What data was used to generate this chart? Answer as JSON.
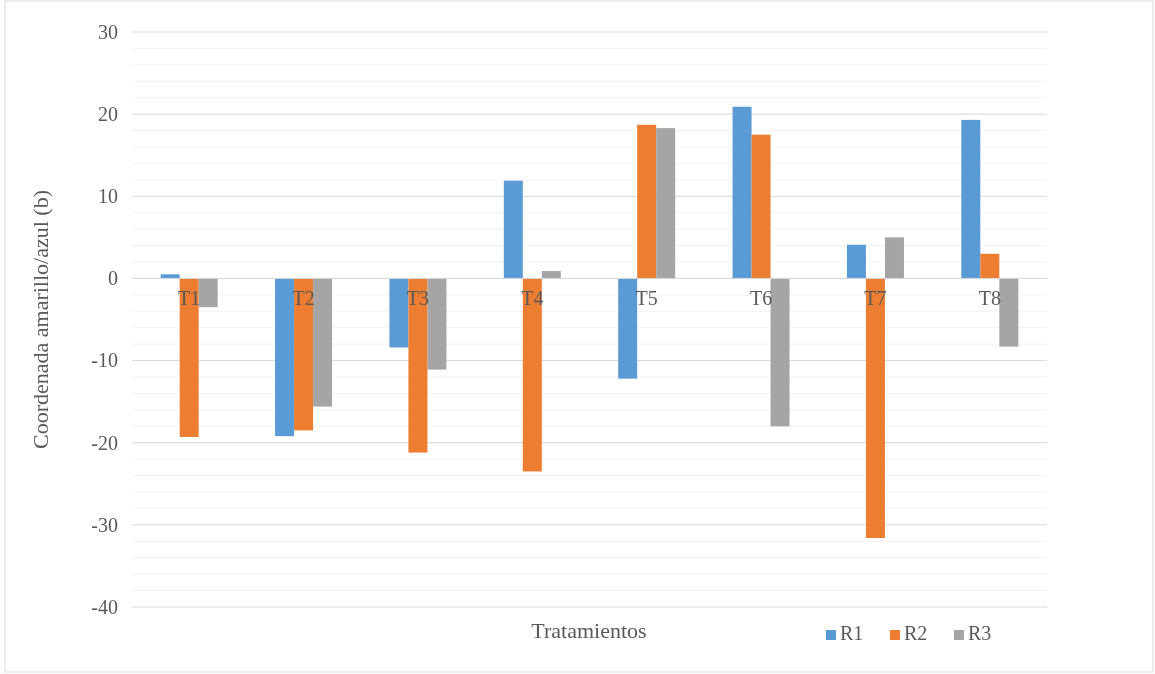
{
  "chart_data": {
    "type": "bar",
    "ylabel": "Coordenada amarillo/azul (b)",
    "xlabel": "Tratamientos",
    "categories": [
      "T1",
      "T2",
      "T3",
      "T4",
      "T5",
      "T6",
      "T7",
      "T8"
    ],
    "series": [
      {
        "name": "R1",
        "color": "#5b9bd5",
        "values": [
          0.5,
          -19.2,
          -8.4,
          11.9,
          -12.2,
          20.9,
          4.1,
          19.3
        ]
      },
      {
        "name": "R2",
        "color": "#ed7d31",
        "values": [
          -19.3,
          -18.5,
          -21.2,
          -23.5,
          18.7,
          17.5,
          -31.6,
          3.0
        ]
      },
      {
        "name": "R3",
        "color": "#a5a5a5",
        "values": [
          -3.5,
          -15.6,
          -11.1,
          0.9,
          18.3,
          -18.0,
          5.0,
          -8.3
        ]
      }
    ],
    "ylim": [
      -40,
      30
    ],
    "yticks": [
      -40,
      {
        "value": -38,
        "label": null
      },
      {
        "value": -36,
        "label": null
      },
      {
        "value": -34,
        "label": null
      },
      {
        "value": -32,
        "label": null
      },
      -30,
      {
        "value": -28,
        "label": null
      },
      {
        "value": -26,
        "label": null
      },
      {
        "value": -24,
        "label": null
      },
      {
        "value": -22,
        "label": null
      },
      -20,
      {
        "value": -18,
        "label": null
      },
      {
        "value": -16,
        "label": null
      },
      {
        "value": -14,
        "label": null
      },
      {
        "value": -12,
        "label": null
      },
      -10,
      {
        "value": -8,
        "label": null
      },
      {
        "value": -6,
        "label": null
      },
      {
        "value": -4,
        "label": null
      },
      {
        "value": -2,
        "label": null
      },
      0,
      {
        "value": 2,
        "label": null
      },
      {
        "value": 4,
        "label": null
      },
      {
        "value": 6,
        "label": null
      },
      {
        "value": 8,
        "label": null
      },
      10,
      {
        "value": 12,
        "label": null
      },
      {
        "value": 14,
        "label": null
      },
      {
        "value": 16,
        "label": null
      },
      {
        "value": 18,
        "label": null
      },
      20,
      {
        "value": 22,
        "label": null
      },
      {
        "value": 24,
        "label": null
      },
      {
        "value": 26,
        "label": null
      },
      {
        "value": 28,
        "label": null
      },
      30
    ],
    "grid": "y",
    "legend": "bottom right"
  }
}
